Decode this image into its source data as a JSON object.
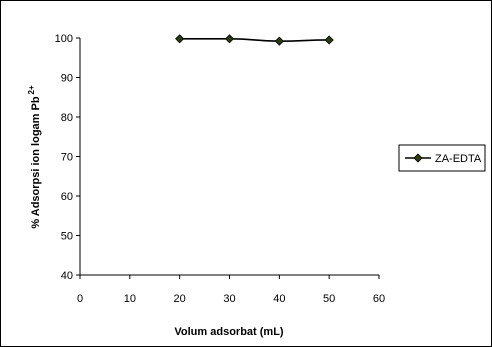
{
  "chart_data": {
    "type": "line",
    "title": "",
    "xlabel": "Volum adsorbat (mL)",
    "ylabel": "% Adsorpsi ion logam Pb",
    "ylabel_sup": "2+",
    "xlim": [
      0,
      60
    ],
    "ylim": [
      40,
      100
    ],
    "xticks": [
      "0",
      "10",
      "20",
      "30",
      "40",
      "50",
      "60"
    ],
    "yticks": [
      "40",
      "50",
      "60",
      "70",
      "80",
      "90",
      "100"
    ],
    "grid": false,
    "legend_position": "right",
    "series": [
      {
        "name": "ZA-EDTA",
        "color": "#000000",
        "marker": "diamond",
        "marker_color": "#2b3a10",
        "x": [
          20,
          30,
          40,
          50
        ],
        "y": [
          99.8,
          99.8,
          99.2,
          99.5
        ]
      }
    ]
  }
}
